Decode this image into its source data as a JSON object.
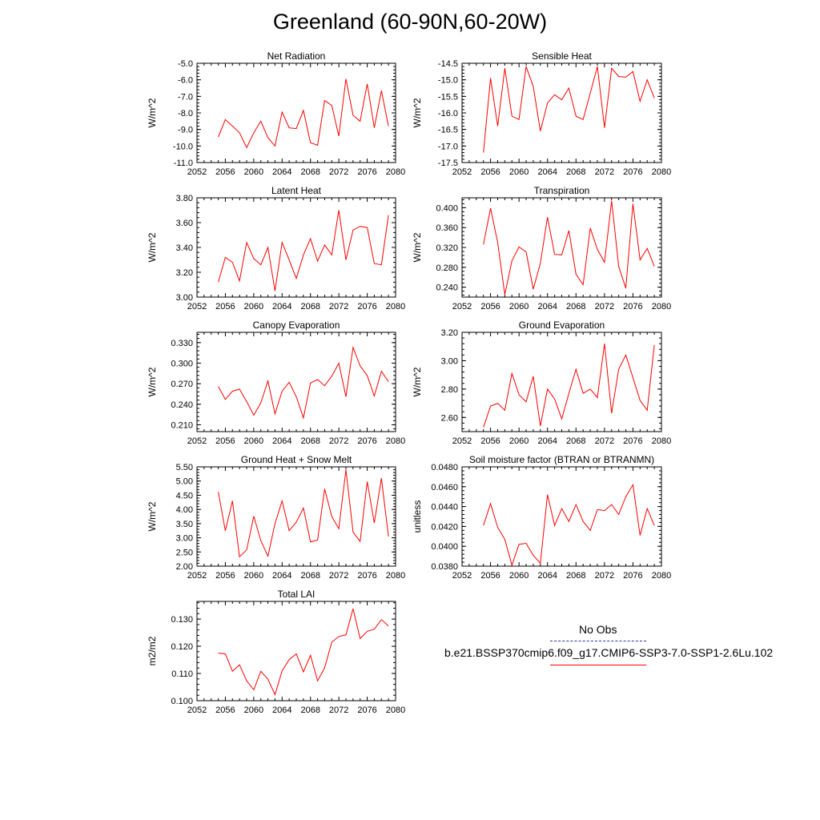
{
  "title": "Greenland (60-90N,60-20W)",
  "legend": {
    "obs_label": "No Obs",
    "case_label": "b.e21.BSSP370cmip6.f09_g17.CMIP6-SSP3-7.0-SSP1-2.6Lu.102",
    "obs_color": "#333399",
    "case_color": "#ff0000"
  },
  "chart_data": [
    {
      "type": "line",
      "title": "Net Radiation",
      "ylabel": "W/m^2",
      "xlim": [
        2052,
        2080
      ],
      "ylim": [
        -11.0,
        -5.0
      ],
      "xticks": [
        "2052",
        "2056",
        "2060",
        "2064",
        "2068",
        "2072",
        "2076",
        "2080"
      ],
      "yticks": [
        "-11.0",
        "-10.0",
        "-9.0",
        "-8.0",
        "-7.0",
        "-6.0",
        "-5.0"
      ],
      "x": [
        2055,
        2056,
        2057,
        2058,
        2059,
        2060,
        2061,
        2062,
        2063,
        2064,
        2065,
        2066,
        2067,
        2068,
        2069,
        2070,
        2071,
        2072,
        2073,
        2074,
        2075,
        2076,
        2077,
        2078,
        2079
      ],
      "series": [
        {
          "color": "#ff0000",
          "values": [
            -9.45,
            -8.4,
            -8.8,
            -9.2,
            -10.1,
            -9.2,
            -8.5,
            -9.5,
            -10.0,
            -7.95,
            -8.9,
            -8.95,
            -7.85,
            -9.8,
            -9.95,
            -7.25,
            -7.55,
            -9.4,
            -5.95,
            -8.15,
            -8.5,
            -6.25,
            -8.9,
            -6.65,
            -8.8
          ]
        }
      ]
    },
    {
      "type": "line",
      "title": "Sensible Heat",
      "ylabel": "W/m^2",
      "xlim": [
        2052,
        2080
      ],
      "ylim": [
        -17.5,
        -14.5
      ],
      "xticks": [
        "2052",
        "2056",
        "2060",
        "2064",
        "2068",
        "2072",
        "2076",
        "2080"
      ],
      "yticks": [
        "-17.5",
        "-17.0",
        "-16.5",
        "-16.0",
        "-15.5",
        "-15.0",
        "-14.5"
      ],
      "x": [
        2055,
        2056,
        2057,
        2058,
        2059,
        2060,
        2061,
        2062,
        2063,
        2064,
        2065,
        2066,
        2067,
        2068,
        2069,
        2070,
        2071,
        2072,
        2073,
        2074,
        2075,
        2076,
        2077,
        2078,
        2079
      ],
      "series": [
        {
          "color": "#ff0000",
          "values": [
            -17.2,
            -14.95,
            -16.4,
            -14.65,
            -16.1,
            -16.2,
            -14.6,
            -15.2,
            -16.55,
            -15.7,
            -15.45,
            -15.6,
            -15.25,
            -16.1,
            -16.2,
            -15.4,
            -14.6,
            -16.45,
            -14.65,
            -14.9,
            -14.92,
            -14.75,
            -15.65,
            -15.0,
            -15.55
          ]
        }
      ]
    },
    {
      "type": "line",
      "title": "Latent Heat",
      "ylabel": "W/m^2",
      "xlim": [
        2052,
        2080
      ],
      "ylim": [
        3.0,
        3.8
      ],
      "xticks": [
        "2052",
        "2056",
        "2060",
        "2064",
        "2068",
        "2072",
        "2076",
        "2080"
      ],
      "yticks": [
        "3.00",
        "3.20",
        "3.40",
        "3.60",
        "3.80"
      ],
      "x": [
        2055,
        2056,
        2057,
        2058,
        2059,
        2060,
        2061,
        2062,
        2063,
        2064,
        2065,
        2066,
        2067,
        2068,
        2069,
        2070,
        2071,
        2072,
        2073,
        2074,
        2075,
        2076,
        2077,
        2078,
        2079
      ],
      "series": [
        {
          "color": "#ff0000",
          "values": [
            3.12,
            3.32,
            3.28,
            3.13,
            3.44,
            3.31,
            3.26,
            3.4,
            3.05,
            3.44,
            3.3,
            3.15,
            3.34,
            3.47,
            3.29,
            3.42,
            3.34,
            3.7,
            3.3,
            3.54,
            3.57,
            3.56,
            3.27,
            3.26,
            3.66
          ]
        }
      ]
    },
    {
      "type": "line",
      "title": "Transpiration",
      "ylabel": "W/m^2",
      "xlim": [
        2052,
        2080
      ],
      "ylim": [
        0.22,
        0.42
      ],
      "xticks": [
        "2052",
        "2056",
        "2060",
        "2064",
        "2068",
        "2072",
        "2076",
        "2080"
      ],
      "yticks": [
        "0.240",
        "0.280",
        "0.320",
        "0.360",
        "0.400"
      ],
      "x": [
        2055,
        2056,
        2057,
        2058,
        2059,
        2060,
        2061,
        2062,
        2063,
        2064,
        2065,
        2066,
        2067,
        2068,
        2069,
        2070,
        2071,
        2072,
        2073,
        2074,
        2075,
        2076,
        2077,
        2078,
        2079
      ],
      "series": [
        {
          "color": "#ff0000",
          "values": [
            0.326,
            0.399,
            0.33,
            0.225,
            0.293,
            0.321,
            0.311,
            0.236,
            0.288,
            0.381,
            0.306,
            0.305,
            0.354,
            0.266,
            0.245,
            0.359,
            0.316,
            0.29,
            0.414,
            0.282,
            0.238,
            0.408,
            0.295,
            0.318,
            0.282
          ]
        }
      ]
    },
    {
      "type": "line",
      "title": "Canopy Evaporation",
      "ylabel": "W/m^2",
      "xlim": [
        2052,
        2080
      ],
      "ylim": [
        0.2,
        0.345
      ],
      "xticks": [
        "2052",
        "2056",
        "2060",
        "2064",
        "2068",
        "2072",
        "2076",
        "2080"
      ],
      "yticks": [
        "0.210",
        "0.240",
        "0.270",
        "0.300",
        "0.330"
      ],
      "x": [
        2055,
        2056,
        2057,
        2058,
        2059,
        2060,
        2061,
        2062,
        2063,
        2064,
        2065,
        2066,
        2067,
        2068,
        2069,
        2070,
        2071,
        2072,
        2073,
        2074,
        2075,
        2076,
        2077,
        2078,
        2079
      ],
      "series": [
        {
          "color": "#ff0000",
          "values": [
            0.266,
            0.247,
            0.259,
            0.262,
            0.244,
            0.224,
            0.242,
            0.274,
            0.226,
            0.259,
            0.272,
            0.251,
            0.22,
            0.271,
            0.276,
            0.267,
            0.281,
            0.3,
            0.251,
            0.323,
            0.296,
            0.282,
            0.252,
            0.288,
            0.273
          ]
        }
      ]
    },
    {
      "type": "line",
      "title": "Ground Evaporation",
      "ylabel": "W/m^2",
      "xlim": [
        2052,
        2080
      ],
      "ylim": [
        2.5,
        3.2
      ],
      "xticks": [
        "2052",
        "2056",
        "2060",
        "2064",
        "2068",
        "2072",
        "2076",
        "2080"
      ],
      "yticks": [
        "2.60",
        "2.80",
        "3.00",
        "3.20"
      ],
      "x": [
        2055,
        2056,
        2057,
        2058,
        2059,
        2060,
        2061,
        2062,
        2063,
        2064,
        2065,
        2066,
        2067,
        2068,
        2069,
        2070,
        2071,
        2072,
        2073,
        2074,
        2075,
        2076,
        2077,
        2078,
        2079
      ],
      "series": [
        {
          "color": "#ff0000",
          "values": [
            2.53,
            2.68,
            2.7,
            2.65,
            2.91,
            2.76,
            2.71,
            2.89,
            2.54,
            2.8,
            2.73,
            2.59,
            2.77,
            2.94,
            2.77,
            2.8,
            2.74,
            3.12,
            2.63,
            2.94,
            3.04,
            2.88,
            2.72,
            2.65,
            3.11
          ]
        }
      ]
    },
    {
      "type": "line",
      "title": "Ground Heat + Snow Melt",
      "ylabel": "W/m^2",
      "xlim": [
        2052,
        2080
      ],
      "ylim": [
        2.0,
        5.5
      ],
      "xticks": [
        "2052",
        "2056",
        "2060",
        "2064",
        "2068",
        "2072",
        "2076",
        "2080"
      ],
      "yticks": [
        "2.00",
        "2.50",
        "3.00",
        "3.50",
        "4.00",
        "4.50",
        "5.00",
        "5.50"
      ],
      "x": [
        2055,
        2056,
        2057,
        2058,
        2059,
        2060,
        2061,
        2062,
        2063,
        2064,
        2065,
        2066,
        2067,
        2068,
        2069,
        2070,
        2071,
        2072,
        2073,
        2074,
        2075,
        2076,
        2077,
        2078,
        2079
      ],
      "series": [
        {
          "color": "#ff0000",
          "values": [
            4.62,
            3.25,
            4.3,
            2.33,
            2.57,
            3.76,
            2.9,
            2.35,
            3.5,
            4.3,
            3.25,
            3.55,
            4.05,
            2.85,
            2.92,
            4.72,
            3.75,
            3.32,
            5.4,
            3.2,
            2.87,
            4.98,
            3.52,
            5.1,
            3.05
          ]
        }
      ]
    },
    {
      "type": "line",
      "title": "Soil moisture factor (BTRAN or BTRANMN)",
      "ylabel": "unitless",
      "xlim": [
        2052,
        2080
      ],
      "ylim": [
        0.038,
        0.048
      ],
      "xticks": [
        "2052",
        "2056",
        "2060",
        "2064",
        "2068",
        "2072",
        "2076",
        "2080"
      ],
      "yticks": [
        "0.0380",
        "0.0400",
        "0.0420",
        "0.0440",
        "0.0460",
        "0.0480"
      ],
      "x": [
        2055,
        2056,
        2057,
        2058,
        2059,
        2060,
        2061,
        2062,
        2063,
        2064,
        2065,
        2066,
        2067,
        2068,
        2069,
        2070,
        2071,
        2072,
        2073,
        2074,
        2075,
        2076,
        2077,
        2078,
        2079
      ],
      "series": [
        {
          "color": "#ff0000",
          "values": [
            0.0421,
            0.0443,
            0.0419,
            0.0407,
            0.0381,
            0.0402,
            0.0403,
            0.0391,
            0.0383,
            0.0452,
            0.0421,
            0.0438,
            0.0425,
            0.0442,
            0.0425,
            0.0416,
            0.0437,
            0.0436,
            0.0442,
            0.0432,
            0.045,
            0.0462,
            0.0411,
            0.0438,
            0.0421
          ]
        }
      ]
    },
    {
      "type": "line",
      "title": "Total LAI",
      "ylabel": "m2/m2",
      "xlim": [
        2052,
        2080
      ],
      "ylim": [
        0.1,
        0.1365
      ],
      "xticks": [
        "2052",
        "2056",
        "2060",
        "2064",
        "2068",
        "2072",
        "2076",
        "2080"
      ],
      "yticks": [
        "0.100",
        "0.110",
        "0.120",
        "0.130"
      ],
      "x": [
        2055,
        2056,
        2057,
        2058,
        2059,
        2060,
        2061,
        2062,
        2063,
        2064,
        2065,
        2066,
        2067,
        2068,
        2069,
        2070,
        2071,
        2072,
        2073,
        2074,
        2075,
        2076,
        2077,
        2078,
        2079
      ],
      "series": [
        {
          "color": "#ff0000",
          "values": [
            0.1175,
            0.1172,
            0.1108,
            0.1132,
            0.1073,
            0.104,
            0.1108,
            0.1079,
            0.1022,
            0.111,
            0.1151,
            0.1172,
            0.1106,
            0.1167,
            0.1073,
            0.1121,
            0.1215,
            0.1236,
            0.1242,
            0.1338,
            0.1228,
            0.1255,
            0.1263,
            0.1298,
            0.1275
          ]
        }
      ]
    }
  ]
}
